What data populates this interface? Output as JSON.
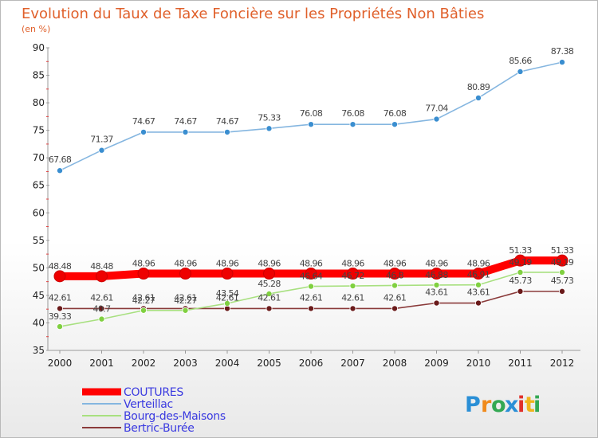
{
  "header": {
    "title": "Evolution du Taux de Taxe Foncière sur les Propriétés Non Bâties",
    "unit": "(en %)"
  },
  "logo": {
    "text": "Proxiti",
    "letters": [
      {
        "char": "P",
        "color": "#2a8fd6"
      },
      {
        "char": "r",
        "color": "#f08a1c"
      },
      {
        "char": "o",
        "color": "#33a853"
      },
      {
        "char": "x",
        "color": "#2a8fd6"
      },
      {
        "char": "i",
        "color": "#e0302b"
      },
      {
        "char": "t",
        "color": "#f0b41c"
      },
      {
        "char": "i",
        "color": "#33a853"
      }
    ]
  },
  "chart_data": {
    "type": "line",
    "title": "Evolution du Taux de Taxe Foncière sur les Propriétés Non Bâties",
    "ylabel": "(en %)",
    "xlabel": "",
    "ylim": [
      35,
      90
    ],
    "yticks": [
      35,
      40,
      45,
      50,
      55,
      60,
      65,
      70,
      75,
      80,
      85,
      90
    ],
    "grid": false,
    "legend": "bottom-left",
    "x": [
      "2000",
      "2001",
      "2002",
      "2003",
      "2004",
      "2005",
      "2006",
      "2007",
      "2008",
      "2009",
      "2010",
      "2011",
      "2012"
    ],
    "series": [
      {
        "name": "COUTURES",
        "color": "#ff0000",
        "marker": "#ee0000",
        "values": [
          48.48,
          48.48,
          48.96,
          48.96,
          48.96,
          48.96,
          48.96,
          48.96,
          48.96,
          48.96,
          48.96,
          51.33,
          51.33
        ],
        "labels": [
          "48.48",
          "48.48",
          "48.96",
          "48.96",
          "48.96",
          "48.96",
          "48.96",
          "48.96",
          "48.96",
          "48.96",
          "48.96",
          "51.33",
          "51.33"
        ]
      },
      {
        "name": "Verteillac",
        "color": "#85b6e0",
        "marker": "#3a8ed0",
        "values": [
          67.68,
          71.37,
          74.67,
          74.67,
          74.67,
          75.33,
          76.08,
          76.08,
          76.08,
          77.04,
          80.89,
          85.66,
          87.38
        ],
        "labels": [
          "67.68",
          "71.37",
          "74.67",
          "74.67",
          "74.67",
          "75.33",
          "76.08",
          "76.08",
          "76.08",
          "77.04",
          "80.89",
          "85.66",
          "87.38"
        ]
      },
      {
        "name": "Bourg-des-Maisons",
        "color": "#a8e080",
        "marker": "#80d040",
        "values": [
          39.33,
          40.7,
          42.27,
          42.27,
          43.54,
          45.28,
          46.64,
          46.72,
          46.8,
          46.88,
          46.91,
          49.19,
          49.19
        ],
        "labels": [
          "39.33",
          "40.7",
          "42.27",
          "42.27",
          "43.54",
          "45.28",
          "46.64",
          "46.72",
          "46.8",
          "46.88",
          "46.91",
          "49.19",
          "49.19"
        ]
      },
      {
        "name": "Bertric-Burée",
        "color": "#8a3a3a",
        "marker": "#6a1a1a",
        "values": [
          42.61,
          42.61,
          42.61,
          42.61,
          42.61,
          42.61,
          42.61,
          42.61,
          42.61,
          43.61,
          43.61,
          45.73,
          45.73
        ],
        "labels": [
          "42.61",
          "42.61",
          "42.61",
          "42.61",
          "42.61",
          "42.61",
          "42.61",
          "42.61",
          "42.61",
          "43.61",
          "43.61",
          "45.73",
          "45.73"
        ]
      }
    ]
  }
}
